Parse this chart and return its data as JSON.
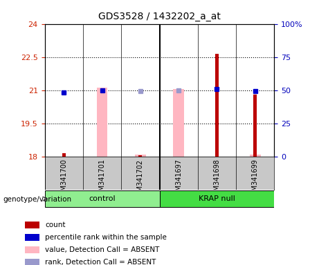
{
  "title": "GDS3528 / 1432202_a_at",
  "samples": [
    "GSM341700",
    "GSM341701",
    "GSM341702",
    "GSM341697",
    "GSM341698",
    "GSM341699"
  ],
  "ylim_left": [
    18,
    24
  ],
  "ylim_right": [
    0,
    100
  ],
  "yticks_left": [
    18,
    19.5,
    21,
    22.5,
    24
  ],
  "ytick_labels_left": [
    "18",
    "19.5",
    "21",
    "22.5",
    "24"
  ],
  "yticks_right": [
    0,
    25,
    50,
    75,
    100
  ],
  "ytick_labels_right": [
    "0",
    "25",
    "50",
    "75",
    "100%"
  ],
  "bars_pink": {
    "GSM341701": [
      18.0,
      21.1
    ],
    "GSM341697": [
      18.0,
      21.05
    ]
  },
  "bars_pink_small": {
    "GSM341702": [
      18.0,
      18.08
    ],
    "GSM341699": [
      18.0,
      18.08
    ]
  },
  "bars_red": {
    "GSM341700": [
      18.0,
      18.13
    ],
    "GSM341702": [
      18.0,
      18.06
    ],
    "GSM341698": [
      18.0,
      22.65
    ],
    "GSM341699": [
      18.0,
      20.8
    ]
  },
  "dots_blue": {
    "GSM341700": 20.88,
    "GSM341701": 21.0,
    "GSM341698": 21.05,
    "GSM341699": 20.95
  },
  "dots_lightblue": {
    "GSM341702": 20.97,
    "GSM341697": 21.0
  },
  "pink_bar_color": "#FFB6C1",
  "red_bar_color": "#BB0000",
  "blue_dot_color": "#0000CC",
  "lightblue_dot_color": "#9999CC",
  "left_tick_color": "#CC2200",
  "right_tick_color": "#0000BB",
  "grid_color": "#111111",
  "control_color": "#90EE90",
  "krap_color": "#44DD44",
  "sample_bg": "#C8C8C8",
  "legend_items": [
    {
      "label": "count",
      "color": "#BB0000"
    },
    {
      "label": "percentile rank within the sample",
      "color": "#0000CC"
    },
    {
      "label": "value, Detection Call = ABSENT",
      "color": "#FFB6C1"
    },
    {
      "label": "rank, Detection Call = ABSENT",
      "color": "#9999CC"
    }
  ]
}
